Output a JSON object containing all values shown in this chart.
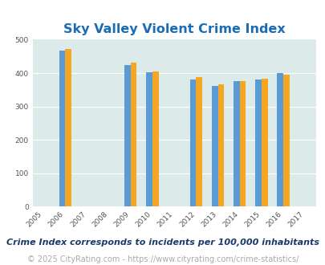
{
  "title": "Sky Valley Violent Crime Index",
  "subtitle": "Crime Index corresponds to incidents per 100,000 inhabitants",
  "footer": "© 2025 CityRating.com - https://www.cityrating.com/crime-statistics/",
  "years": [
    2005,
    2006,
    2007,
    2008,
    2009,
    2010,
    2011,
    2012,
    2013,
    2014,
    2015,
    2016,
    2017
  ],
  "georgia": {
    "2006": 468,
    "2009": 425,
    "2010": 402,
    "2012": 381,
    "2013": 361,
    "2014": 377,
    "2015": 381,
    "2016": 400
  },
  "national": {
    "2006": 473,
    "2009": 431,
    "2010": 404,
    "2012": 387,
    "2013": 367,
    "2014": 376,
    "2015": 383,
    "2016": 395
  },
  "sky_valley": {},
  "bar_width": 0.28,
  "georgia_color": "#5b9bd5",
  "national_color": "#f5a623",
  "sky_valley_color": "#92d050",
  "bg_color": "#ddeaea",
  "ylim": [
    0,
    500
  ],
  "yticks": [
    0,
    100,
    200,
    300,
    400,
    500
  ],
  "title_color": "#1a6db5",
  "title_fontsize": 11.5,
  "subtitle_color": "#1a3a6b",
  "subtitle_fontsize": 8.0,
  "footer_color": "#aaaaaa",
  "footer_fontsize": 7.0,
  "legend_fontsize": 8.5,
  "tick_fontsize": 6.5,
  "years_with_data": [
    2006,
    2009,
    2010,
    2012,
    2013,
    2014,
    2015,
    2016
  ]
}
